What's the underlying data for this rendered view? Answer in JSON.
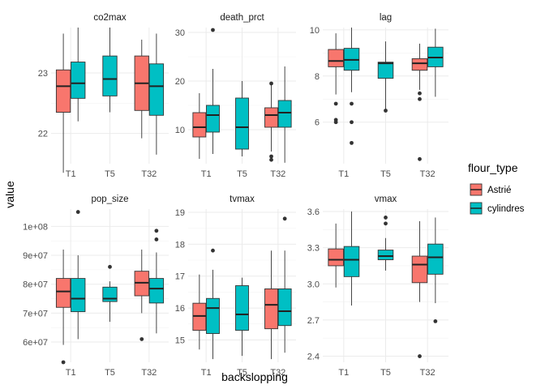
{
  "chart_data": {
    "type": "boxplot",
    "xlabel": "backslopping",
    "ylabel": "value",
    "categories": [
      "T1",
      "T5",
      "T32"
    ],
    "legend": {
      "title": "flour_type",
      "placement": "right",
      "entries": [
        {
          "name": "Astrié",
          "color": "#F8766D"
        },
        {
          "name": "cylindres",
          "color": "#00BFC4"
        }
      ]
    },
    "grid": true,
    "facets": [
      {
        "title": "co2max",
        "ylim": [
          21.5,
          23.75
        ],
        "yticks": [
          {
            "v": 22,
            "label": "22"
          },
          {
            "v": 23,
            "label": "23"
          }
        ],
        "boxes": [
          {
            "cat": "T1",
            "series": "Astrié",
            "low": 21.35,
            "q1": 22.35,
            "med": 22.78,
            "q3": 23.05,
            "high": 23.65,
            "outliers": []
          },
          {
            "cat": "T1",
            "series": "cylindres",
            "low": 22.2,
            "q1": 22.58,
            "med": 22.83,
            "q3": 23.18,
            "high": 23.75,
            "outliers": []
          },
          {
            "cat": "T5",
            "series": "cylindres",
            "low": 22.35,
            "q1": 22.62,
            "med": 22.9,
            "q3": 23.28,
            "high": 23.75,
            "outliers": []
          },
          {
            "cat": "T32",
            "series": "Astrié",
            "low": 21.92,
            "q1": 22.38,
            "med": 22.83,
            "q3": 23.28,
            "high": 23.55,
            "outliers": []
          },
          {
            "cat": "T32",
            "series": "cylindres",
            "low": 21.65,
            "q1": 22.3,
            "med": 22.78,
            "q3": 23.15,
            "high": 23.65,
            "outliers": []
          }
        ]
      },
      {
        "title": "death_prct",
        "ylim": [
          3,
          31
        ],
        "yticks": [
          {
            "v": 10,
            "label": "10"
          },
          {
            "v": 20,
            "label": "20"
          },
          {
            "v": 30,
            "label": "30"
          }
        ],
        "boxes": [
          {
            "cat": "T1",
            "series": "Astrié",
            "low": 4,
            "q1": 8.5,
            "med": 10.5,
            "q3": 13.5,
            "high": 17.5,
            "outliers": []
          },
          {
            "cat": "T1",
            "series": "cylindres",
            "low": 5,
            "q1": 9.5,
            "med": 13,
            "q3": 15,
            "high": 22.5,
            "outliers": [
              30.5
            ]
          },
          {
            "cat": "T5",
            "series": "cylindres",
            "low": 4.5,
            "q1": 6,
            "med": 10.5,
            "q3": 16.5,
            "high": 20,
            "outliers": []
          },
          {
            "cat": "T32",
            "series": "Astrié",
            "low": 5.5,
            "q1": 10.5,
            "med": 13,
            "q3": 14.5,
            "high": 19.5,
            "outliers": [
              3.8,
              4.5,
              19.5
            ]
          },
          {
            "cat": "T32",
            "series": "cylindres",
            "low": 3.2,
            "q1": 10.5,
            "med": 13.5,
            "q3": 16,
            "high": 23,
            "outliers": []
          }
        ]
      },
      {
        "title": "lag",
        "ylim": [
          4.2,
          10.1
        ],
        "yticks": [
          {
            "v": 6,
            "label": "6"
          },
          {
            "v": 8,
            "label": "8"
          },
          {
            "v": 10,
            "label": "10"
          }
        ],
        "boxes": [
          {
            "cat": "T1",
            "series": "Astrié",
            "low": 7.2,
            "q1": 8.4,
            "med": 8.65,
            "q3": 9.15,
            "high": 9.85,
            "outliers": [
              6.8,
              6.1,
              6.0
            ]
          },
          {
            "cat": "T1",
            "series": "cylindres",
            "low": 7.3,
            "q1": 8.25,
            "med": 8.7,
            "q3": 9.2,
            "high": 10.1,
            "outliers": [
              6.8,
              6.0,
              5.1
            ]
          },
          {
            "cat": "T5",
            "series": "cylindres",
            "low": 6.5,
            "q1": 7.9,
            "med": 8.55,
            "q3": 8.6,
            "high": 9.5,
            "outliers": [
              6.5
            ]
          },
          {
            "cat": "T32",
            "series": "Astrié",
            "low": 7.4,
            "q1": 8.25,
            "med": 8.55,
            "q3": 8.75,
            "high": 9.4,
            "outliers": [
              7.25,
              7.0,
              4.4
            ]
          },
          {
            "cat": "T32",
            "series": "cylindres",
            "low": 7.1,
            "q1": 8.4,
            "med": 8.8,
            "q3": 9.25,
            "high": 10.05,
            "outliers": []
          }
        ]
      },
      {
        "title": "pop_size",
        "ylim": [
          53000000,
          106000000
        ],
        "yticks": [
          {
            "v": 60000000,
            "label": "6e+07"
          },
          {
            "v": 70000000,
            "label": "7e+07"
          },
          {
            "v": 80000000,
            "label": "8e+07"
          },
          {
            "v": 90000000,
            "label": "9e+07"
          },
          {
            "v": 100000000,
            "label": "1e+08"
          }
        ],
        "boxes": [
          {
            "cat": "T1",
            "series": "Astrié",
            "low": 59000000,
            "q1": 72000000,
            "med": 77500000,
            "q3": 82000000,
            "high": 92000000,
            "outliers": [
              53000000
            ]
          },
          {
            "cat": "T1",
            "series": "cylindres",
            "low": 61000000,
            "q1": 70500000,
            "med": 75000000,
            "q3": 82000000,
            "high": 90000000,
            "outliers": [
              105000000
            ]
          },
          {
            "cat": "T5",
            "series": "cylindres",
            "low": 67000000,
            "q1": 74000000,
            "med": 75000000,
            "q3": 79000000,
            "high": 81000000,
            "outliers": [
              86000000
            ]
          },
          {
            "cat": "T32",
            "series": "Astrié",
            "low": 70000000,
            "q1": 76000000,
            "med": 80500000,
            "q3": 84500000,
            "high": 92000000,
            "outliers": [
              61000000
            ]
          },
          {
            "cat": "T32",
            "series": "cylindres",
            "low": 63000000,
            "q1": 73500000,
            "med": 78500000,
            "q3": 82000000,
            "high": 91000000,
            "outliers": [
              95500000,
              98500000
            ]
          }
        ]
      },
      {
        "title": "tvmax",
        "ylim": [
          14.3,
          19.1
        ],
        "yticks": [
          {
            "v": 15,
            "label": "15"
          },
          {
            "v": 16,
            "label": "16"
          },
          {
            "v": 17,
            "label": "17"
          },
          {
            "v": 18,
            "label": "18"
          },
          {
            "v": 19,
            "label": "19"
          }
        ],
        "boxes": [
          {
            "cat": "T1",
            "series": "Astrié",
            "low": 14.7,
            "q1": 15.3,
            "med": 15.75,
            "q3": 16.15,
            "high": 17.05,
            "outliers": []
          },
          {
            "cat": "T1",
            "series": "cylindres",
            "low": 14.4,
            "q1": 15.2,
            "med": 16.0,
            "q3": 16.3,
            "high": 17.2,
            "outliers": [
              17.8
            ]
          },
          {
            "cat": "T5",
            "series": "cylindres",
            "low": 14.5,
            "q1": 15.3,
            "med": 15.8,
            "q3": 16.7,
            "high": 16.95,
            "outliers": []
          },
          {
            "cat": "T32",
            "series": "Astrié",
            "low": 14.4,
            "q1": 15.35,
            "med": 16.1,
            "q3": 16.6,
            "high": 17.8,
            "outliers": []
          },
          {
            "cat": "T32",
            "series": "cylindres",
            "low": 14.6,
            "q1": 15.45,
            "med": 15.9,
            "q3": 16.6,
            "high": 17.8,
            "outliers": [
              18.8
            ]
          }
        ]
      },
      {
        "title": "vmax",
        "ylim": [
          2.35,
          3.62
        ],
        "yticks": [
          {
            "v": 2.4,
            "label": "2.4"
          },
          {
            "v": 2.7,
            "label": "2.7"
          },
          {
            "v": 3.0,
            "label": "3.0"
          },
          {
            "v": 3.3,
            "label": "3.3"
          },
          {
            "v": 3.6,
            "label": "3.6"
          }
        ],
        "boxes": [
          {
            "cat": "T1",
            "series": "Astrié",
            "low": 2.97,
            "q1": 3.15,
            "med": 3.2,
            "q3": 3.29,
            "high": 3.5,
            "outliers": []
          },
          {
            "cat": "T1",
            "series": "cylindres",
            "low": 2.82,
            "q1": 3.06,
            "med": 3.2,
            "q3": 3.31,
            "high": 3.6,
            "outliers": []
          },
          {
            "cat": "T5",
            "series": "cylindres",
            "low": 3.11,
            "q1": 3.2,
            "med": 3.23,
            "q3": 3.28,
            "high": 3.38,
            "outliers": [
              3.5,
              3.55
            ]
          },
          {
            "cat": "T32",
            "series": "Astrié",
            "low": 2.85,
            "q1": 3.01,
            "med": 3.16,
            "q3": 3.23,
            "high": 3.52,
            "outliers": [
              2.4
            ]
          },
          {
            "cat": "T32",
            "series": "cylindres",
            "low": 2.84,
            "q1": 3.08,
            "med": 3.22,
            "q3": 3.33,
            "high": 3.55,
            "outliers": [
              2.69
            ]
          }
        ]
      }
    ]
  }
}
